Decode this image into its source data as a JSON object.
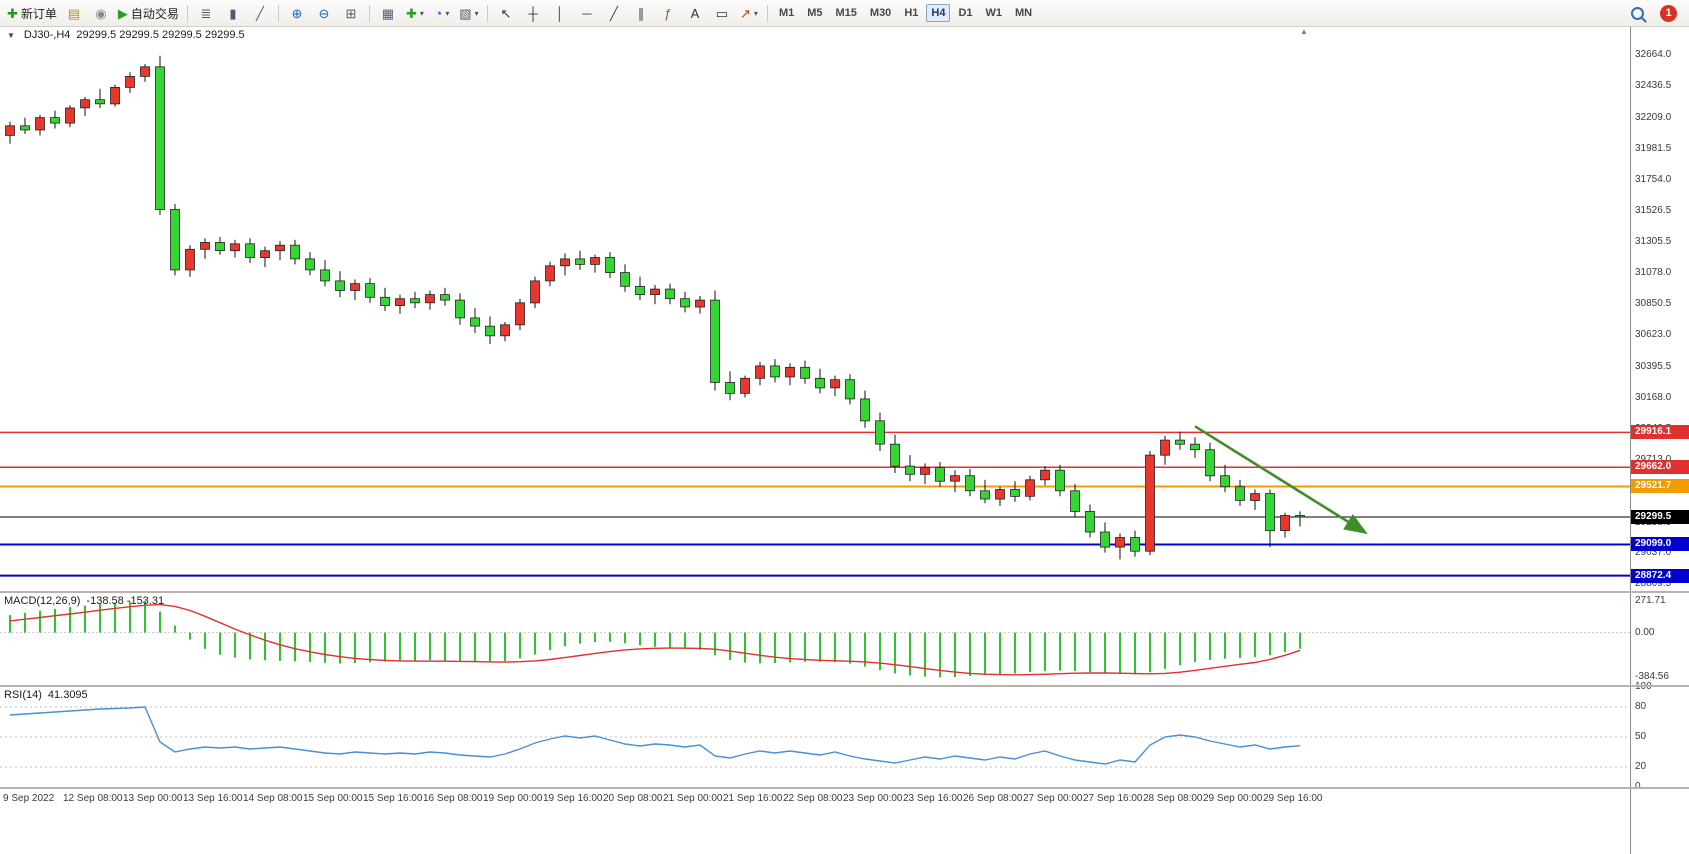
{
  "toolbar": {
    "groups": [
      {
        "name": "trade",
        "buttons": [
          {
            "name": "new-order-button",
            "icon": "new-order-icon",
            "label": "新订单"
          },
          {
            "name": "market-depth-button",
            "icon": "market-depth-icon"
          },
          {
            "name": "community-button",
            "icon": "community-icon"
          },
          {
            "name": "auto-trading-button",
            "icon": "auto-trading-icon",
            "label": "自动交易"
          }
        ]
      },
      {
        "name": "chart-type",
        "buttons": [
          {
            "name": "bar-chart-button",
            "icon": "bar-chart-icon"
          },
          {
            "name": "candlestick-chart-button",
            "icon": "candlestick-icon"
          },
          {
            "name": "line-chart-button",
            "icon": "line-chart-icon"
          }
        ]
      },
      {
        "name": "zoom",
        "buttons": [
          {
            "name": "zoom-in-button",
            "icon": "zoom-in-icon"
          },
          {
            "name": "zoom-out-button",
            "icon": "zoom-out-icon"
          },
          {
            "name": "tile-windows-button",
            "icon": "tile-windows-icon"
          }
        ]
      },
      {
        "name": "chart-manage",
        "buttons": [
          {
            "name": "auto-arrange-button",
            "icon": "arrange-icon"
          },
          {
            "name": "new-chart-button",
            "icon": "new-chart-icon",
            "caret": true
          },
          {
            "name": "period-button",
            "icon": "clock-icon",
            "caret": true
          },
          {
            "name": "templates-button",
            "icon": "template-icon",
            "caret": true
          }
        ]
      },
      {
        "name": "objects",
        "buttons": [
          {
            "name": "cursor-button",
            "icon": "cursor-icon"
          },
          {
            "name": "crosshair-button",
            "icon": "crosshair-icon"
          },
          {
            "name": "vertical-line-button",
            "icon": "vertical-line-icon"
          },
          {
            "name": "horizontal-line-button",
            "icon": "horizontal-line-icon"
          },
          {
            "name": "trendline-button",
            "icon": "trendline-icon"
          },
          {
            "name": "equidistant-channel-button",
            "icon": "channel-icon"
          },
          {
            "name": "fibonacci-button",
            "icon": "fibonacci-icon"
          },
          {
            "name": "text-button",
            "icon": "text-icon"
          },
          {
            "name": "text-label-button",
            "icon": "label-icon"
          },
          {
            "name": "arrows-button",
            "icon": "arrows-icon",
            "caret": true
          }
        ]
      }
    ],
    "timeframes": [
      {
        "label": "M1"
      },
      {
        "label": "M5"
      },
      {
        "label": "M15"
      },
      {
        "label": "M30"
      },
      {
        "label": "H1"
      },
      {
        "label": "H4",
        "active": true
      },
      {
        "label": "D1"
      },
      {
        "label": "W1"
      },
      {
        "label": "MN"
      }
    ],
    "notification_count": "1"
  },
  "chart": {
    "title": "DJ30-,H4",
    "ohlc": "29299.5 29299.5 29299.5 29299.5"
  },
  "chart_data": {
    "type": "candlestick",
    "symbol": "DJ30-",
    "period": "H4",
    "price_range": [
      32870,
      28760
    ],
    "colors": {
      "up": "#e8382d",
      "down": "#33d633",
      "wick": "#111111",
      "macd_hist": "#2fc42f",
      "macd_signal": "#e03030",
      "rsi": "#4a8fd6"
    },
    "candles": [
      [
        32080,
        32180,
        32020,
        32150
      ],
      [
        32150,
        32210,
        32090,
        32120
      ],
      [
        32120,
        32230,
        32080,
        32210
      ],
      [
        32210,
        32260,
        32130,
        32170
      ],
      [
        32170,
        32300,
        32140,
        32280
      ],
      [
        32280,
        32360,
        32220,
        32340
      ],
      [
        32340,
        32420,
        32280,
        32310
      ],
      [
        32310,
        32450,
        32290,
        32430
      ],
      [
        32430,
        32540,
        32390,
        32510
      ],
      [
        32510,
        32600,
        32470,
        32580
      ],
      [
        32580,
        32660,
        31500,
        31540
      ],
      [
        31540,
        31580,
        31060,
        31100
      ],
      [
        31100,
        31280,
        31050,
        31250
      ],
      [
        31250,
        31330,
        31180,
        31300
      ],
      [
        31300,
        31340,
        31210,
        31240
      ],
      [
        31240,
        31320,
        31190,
        31290
      ],
      [
        31290,
        31330,
        31150,
        31190
      ],
      [
        31190,
        31270,
        31120,
        31240
      ],
      [
        31240,
        31310,
        31170,
        31280
      ],
      [
        31280,
        31320,
        31140,
        31180
      ],
      [
        31180,
        31230,
        31060,
        31100
      ],
      [
        31100,
        31170,
        30980,
        31020
      ],
      [
        31020,
        31090,
        30900,
        30950
      ],
      [
        30950,
        31030,
        30880,
        31000
      ],
      [
        31000,
        31040,
        30860,
        30900
      ],
      [
        30900,
        30970,
        30800,
        30840
      ],
      [
        30840,
        30920,
        30780,
        30890
      ],
      [
        30890,
        30940,
        30820,
        30860
      ],
      [
        30860,
        30950,
        30810,
        30920
      ],
      [
        30920,
        30970,
        30840,
        30880
      ],
      [
        30880,
        30930,
        30700,
        30750
      ],
      [
        30750,
        30820,
        30640,
        30690
      ],
      [
        30690,
        30760,
        30560,
        30620
      ],
      [
        30620,
        30720,
        30580,
        30700
      ],
      [
        30700,
        30890,
        30660,
        30860
      ],
      [
        30860,
        31050,
        30820,
        31020
      ],
      [
        31020,
        31160,
        30980,
        31130
      ],
      [
        31130,
        31220,
        31060,
        31180
      ],
      [
        31180,
        31240,
        31100,
        31140
      ],
      [
        31140,
        31210,
        31080,
        31190
      ],
      [
        31190,
        31230,
        31040,
        31080
      ],
      [
        31080,
        31140,
        30940,
        30980
      ],
      [
        30980,
        31050,
        30880,
        30920
      ],
      [
        30920,
        30990,
        30850,
        30960
      ],
      [
        30960,
        31000,
        30850,
        30890
      ],
      [
        30890,
        30940,
        30790,
        30830
      ],
      [
        30830,
        30910,
        30780,
        30880
      ],
      [
        30880,
        30950,
        30220,
        30280
      ],
      [
        30280,
        30360,
        30150,
        30200
      ],
      [
        30200,
        30330,
        30170,
        30310
      ],
      [
        30310,
        30430,
        30260,
        30400
      ],
      [
        30400,
        30450,
        30280,
        30320
      ],
      [
        30320,
        30420,
        30260,
        30390
      ],
      [
        30390,
        30440,
        30270,
        30310
      ],
      [
        30310,
        30380,
        30200,
        30240
      ],
      [
        30240,
        30330,
        30180,
        30300
      ],
      [
        30300,
        30340,
        30120,
        30160
      ],
      [
        30160,
        30220,
        29950,
        30000
      ],
      [
        30000,
        30060,
        29780,
        29830
      ],
      [
        29830,
        29900,
        29620,
        29670
      ],
      [
        29670,
        29750,
        29560,
        29610
      ],
      [
        29610,
        29690,
        29540,
        29660
      ],
      [
        29660,
        29700,
        29520,
        29560
      ],
      [
        29560,
        29640,
        29480,
        29600
      ],
      [
        29600,
        29650,
        29450,
        29490
      ],
      [
        29490,
        29570,
        29400,
        29430
      ],
      [
        29430,
        29520,
        29380,
        29500
      ],
      [
        29500,
        29560,
        29410,
        29450
      ],
      [
        29450,
        29600,
        29420,
        29570
      ],
      [
        29570,
        29670,
        29530,
        29640
      ],
      [
        29640,
        29680,
        29450,
        29490
      ],
      [
        29490,
        29540,
        29300,
        29340
      ],
      [
        29340,
        29390,
        29150,
        29190
      ],
      [
        29190,
        29260,
        29040,
        29080
      ],
      [
        29080,
        29180,
        28990,
        29150
      ],
      [
        29150,
        29200,
        29010,
        29050
      ],
      [
        29050,
        29780,
        29020,
        29750
      ],
      [
        29750,
        29890,
        29680,
        29860
      ],
      [
        29860,
        29920,
        29790,
        29830
      ],
      [
        29830,
        29880,
        29730,
        29790
      ],
      [
        29790,
        29840,
        29560,
        29600
      ],
      [
        29600,
        29680,
        29480,
        29520
      ],
      [
        29520,
        29570,
        29380,
        29420
      ],
      [
        29420,
        29500,
        29350,
        29470
      ],
      [
        29470,
        29500,
        29080,
        29200
      ],
      [
        29200,
        29330,
        29150,
        29310
      ],
      [
        29310,
        29340,
        29230,
        29299.5
      ]
    ],
    "time_labels": [
      "9 Sep 2022",
      "12 Sep 08:00",
      "13 Sep 00:00",
      "13 Sep 16:00",
      "14 Sep 08:00",
      "15 Sep 00:00",
      "15 Sep 16:00",
      "16 Sep 08:00",
      "19 Sep 00:00",
      "19 Sep 16:00",
      "20 Sep 08:00",
      "21 Sep 00:00",
      "21 Sep 16:00",
      "22 Sep 08:00",
      "23 Sep 00:00",
      "23 Sep 16:00",
      "26 Sep 08:00",
      "27 Sep 00:00",
      "27 Sep 16:00",
      "28 Sep 08:00",
      "29 Sep 00:00",
      "29 Sep 16:00"
    ],
    "price_axis_labels": [
      "32664.0",
      "32436.5",
      "32209.0",
      "31981.5",
      "31754.0",
      "31526.5",
      "31305.5",
      "31078.0",
      "30850.5",
      "30623.0",
      "30395.5",
      "30168.0",
      "29940.5",
      "29713.0",
      "29485.5",
      "29258.0",
      "29037.0",
      "28809.5"
    ],
    "hlines": [
      {
        "price": 29916.1,
        "label": "29916.1",
        "color": "#e03030",
        "width": 1.5
      },
      {
        "price": 29662.0,
        "label": "29662.0",
        "color": "#e03030",
        "width": 1.5
      },
      {
        "price": 29521.7,
        "label": "29521.7",
        "color": "#f59b00",
        "width": 2
      },
      {
        "price": 29299.5,
        "label": "29299.5",
        "color": "#000000",
        "width": 1
      },
      {
        "price": 29099.0,
        "label": "29099.0",
        "color": "#0000cf",
        "width": 2
      },
      {
        "price": 28872.4,
        "label": "28872.4",
        "color": "#0000cf",
        "width": 2
      }
    ],
    "arrow": {
      "from_index": 79,
      "from_price": 29960,
      "to_index": 90.3,
      "to_price": 29190,
      "color": "#3f8e28"
    },
    "macd": {
      "label": "MACD(12,26,9)",
      "values_text": "-138.58 -153.31",
      "range": [
        340,
        -450
      ],
      "axis_labels": [
        "271.71",
        "0.00",
        "-384.56"
      ],
      "hist": [
        150,
        170,
        188,
        204,
        218,
        232,
        246,
        258,
        266,
        271.71,
        180,
        60,
        -60,
        -140,
        -190,
        -215,
        -230,
        -238,
        -243,
        -247,
        -252,
        -260,
        -266,
        -262,
        -256,
        -250,
        -245,
        -241,
        -238,
        -240,
        -247,
        -254,
        -258,
        -246,
        -222,
        -188,
        -150,
        -118,
        -95,
        -82,
        -80,
        -92,
        -110,
        -122,
        -132,
        -142,
        -148,
        -195,
        -235,
        -258,
        -264,
        -262,
        -256,
        -251,
        -250,
        -253,
        -266,
        -292,
        -322,
        -350,
        -368,
        -379,
        -384.56,
        -381,
        -374,
        -366,
        -358,
        -350,
        -340,
        -331,
        -326,
        -330,
        -340,
        -350,
        -356,
        -359,
        -342,
        -312,
        -280,
        -254,
        -235,
        -224,
        -218,
        -210,
        -194,
        -166,
        -138.58
      ],
      "signal": [
        100,
        115,
        130,
        145,
        160,
        175,
        192,
        208,
        222,
        234,
        240,
        225,
        190,
        140,
        85,
        30,
        -20,
        -65,
        -105,
        -138,
        -165,
        -188,
        -207,
        -222,
        -232,
        -239,
        -243,
        -245,
        -246,
        -246,
        -247,
        -249,
        -252,
        -253,
        -250,
        -243,
        -231,
        -215,
        -197,
        -179,
        -163,
        -149,
        -140,
        -135,
        -133,
        -134,
        -136,
        -143,
        -159,
        -177,
        -195,
        -211,
        -223,
        -232,
        -238,
        -242,
        -246,
        -252,
        -262,
        -276,
        -292,
        -309,
        -325,
        -339,
        -350,
        -357,
        -361,
        -362,
        -361,
        -358,
        -353,
        -349,
        -347,
        -347,
        -349,
        -352,
        -354,
        -350,
        -340,
        -325,
        -307,
        -289,
        -272,
        -257,
        -230,
        -195,
        -153.31
      ]
    },
    "rsi": {
      "label": "RSI(14)",
      "value_text": "41.3095",
      "range": [
        100,
        0
      ],
      "levels": [
        80,
        50,
        20
      ],
      "axis_labels": [
        "100",
        "80",
        "50",
        "20",
        "0"
      ],
      "values": [
        72,
        73,
        74,
        75,
        76,
        77,
        78,
        78.5,
        79,
        80,
        45,
        35,
        38,
        40,
        39,
        40,
        38,
        39,
        40,
        38,
        36,
        34,
        33,
        35,
        34,
        33,
        34,
        33,
        35,
        34,
        32,
        31,
        30,
        33,
        38,
        44,
        48,
        51,
        49,
        51,
        47,
        43,
        41,
        43,
        42,
        40,
        42,
        31,
        29,
        33,
        36,
        34,
        36,
        34,
        32,
        35,
        31,
        28,
        26,
        24,
        27,
        30,
        28,
        31,
        29,
        27,
        30,
        28,
        33,
        36,
        31,
        27,
        25,
        23,
        27,
        25,
        42,
        50,
        52,
        50,
        46,
        43,
        40,
        42,
        38,
        40,
        41.31
      ]
    }
  }
}
